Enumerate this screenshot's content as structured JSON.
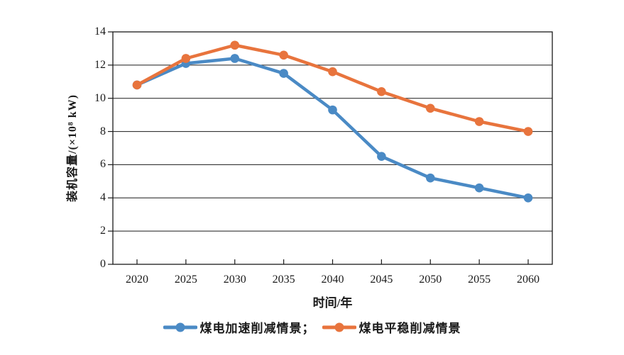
{
  "figure": {
    "background": "#ffffff",
    "text_color": "#1a1a1a",
    "grid_color": "#1a1a1a"
  },
  "chart_data": {
    "type": "line",
    "title": "",
    "x": [
      2020,
      2025,
      2030,
      2035,
      2040,
      2045,
      2050,
      2055,
      2060
    ],
    "series": [
      {
        "name": "煤电加速削减情景",
        "color": "#4a8ac5",
        "marker": "circle",
        "values": [
          10.8,
          12.1,
          12.4,
          11.5,
          9.3,
          6.5,
          5.2,
          4.6,
          4.0
        ]
      },
      {
        "name": "煤电平稳削减情景",
        "color": "#e8743d",
        "marker": "circle",
        "values": [
          10.8,
          12.4,
          13.2,
          12.6,
          11.6,
          10.4,
          9.4,
          8.6,
          8.0
        ]
      }
    ],
    "xlabel": "时间/年",
    "ylabel": "装机容量/(×10⁸ kW)",
    "xlim": [
      2017.5,
      2062.5
    ],
    "ylim": [
      0,
      14
    ],
    "ytick_step": 2,
    "grid": "horizontal",
    "legend_position": "bottom"
  },
  "axes": {
    "x_ticks": [
      "2020",
      "2025",
      "2030",
      "2035",
      "2040",
      "2045",
      "2050",
      "2055",
      "2060"
    ],
    "y_ticks": [
      "0",
      "2",
      "4",
      "6",
      "8",
      "10",
      "12",
      "14"
    ],
    "x_title": "时间/年",
    "y_title": "装机容量/(×10⁸ kW)"
  },
  "legend": {
    "items": [
      {
        "label": "煤电加速削减情景；",
        "color": "#4a8ac5"
      },
      {
        "label": "煤电平稳削减情景",
        "color": "#e8743d"
      }
    ]
  }
}
